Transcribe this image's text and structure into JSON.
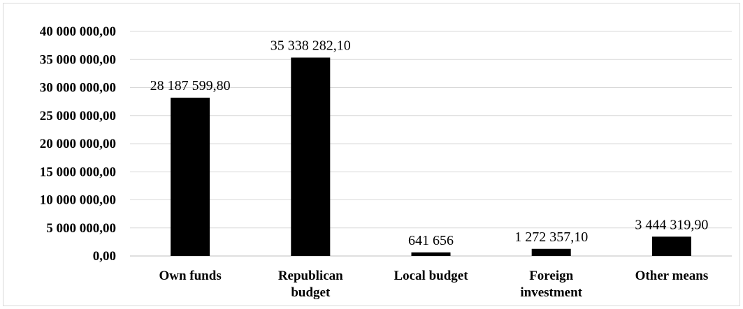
{
  "chart_data": {
    "type": "bar",
    "categories": [
      [
        "Own funds"
      ],
      [
        "Republican",
        "budget"
      ],
      [
        "Local budget"
      ],
      [
        "Foreign",
        "investment"
      ],
      [
        "Other means"
      ]
    ],
    "values": [
      28187599.8,
      35338282.1,
      641656,
      1272357.1,
      3444319.9
    ],
    "data_labels": [
      "28 187 599,80",
      "35 338 282,10",
      "641 656",
      "1 272 357,10",
      "3 444 319,90"
    ],
    "y_ticks": [
      0,
      5000000,
      10000000,
      15000000,
      20000000,
      25000000,
      30000000,
      35000000,
      40000000
    ],
    "y_tick_labels": [
      "0,00",
      "5 000 000,00",
      "10 000 000,00",
      "15 000 000,00",
      "20 000 000,00",
      "25 000 000,00",
      "30 000 000,00",
      "35 000 000,00",
      "40 000 000,00"
    ],
    "ylim": [
      0,
      40000000
    ],
    "title": "",
    "xlabel": "",
    "ylabel": "",
    "grid": true,
    "legend": "none",
    "colors": {
      "bar": "#000000",
      "grid": "#d9d9d9",
      "axis": "#bfbfbf"
    }
  }
}
